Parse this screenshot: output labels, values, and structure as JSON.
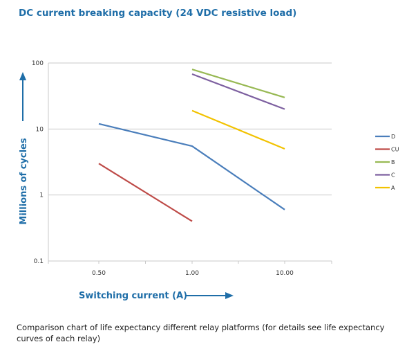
{
  "title": "DC current breaking capacity (24 VDC resistive load)",
  "caption": "Comparison chart of life expectancy different relay platforms (for details see life expectancy curves of each relay)",
  "colors": {
    "title": "#1f6ea8",
    "axis_label": "#1f6ea8",
    "arrow": "#1f6ea8",
    "grid": "#c8c8c8",
    "tick": "#333333"
  },
  "chart_data": {
    "type": "line",
    "x_scale": "categorical",
    "y_scale": "log",
    "categories": [
      "0.50",
      "1.00",
      "10.00"
    ],
    "xlabel": "Switching current (A)",
    "ylabel": "Millions of cycles",
    "ylim": [
      0.1,
      100
    ],
    "y_ticks": [
      0.1,
      1,
      10,
      100
    ],
    "y_tick_labels": [
      "0.1",
      "1",
      "10",
      "100"
    ],
    "grid": "horizontal",
    "legend_position": "right",
    "series": [
      {
        "name": "D",
        "color": "#4a7ebb",
        "points": [
          {
            "x": "0.50",
            "y": 12
          },
          {
            "x": "1.00",
            "y": 5.5
          },
          {
            "x": "10.00",
            "y": 0.6
          }
        ]
      },
      {
        "name": "CU",
        "color": "#be4b48",
        "points": [
          {
            "x": "0.50",
            "y": 3
          },
          {
            "x": "1.00",
            "y": 0.4
          }
        ]
      },
      {
        "name": "B",
        "color": "#98b954",
        "points": [
          {
            "x": "1.00",
            "y": 80
          },
          {
            "x": "10.00",
            "y": 30
          }
        ]
      },
      {
        "name": "C",
        "color": "#7d60a0",
        "points": [
          {
            "x": "1.00",
            "y": 68
          },
          {
            "x": "10.00",
            "y": 20
          }
        ]
      },
      {
        "name": "A",
        "color": "#f2c200",
        "points": [
          {
            "x": "1.00",
            "y": 19
          },
          {
            "x": "10.00",
            "y": 5
          }
        ]
      }
    ]
  }
}
